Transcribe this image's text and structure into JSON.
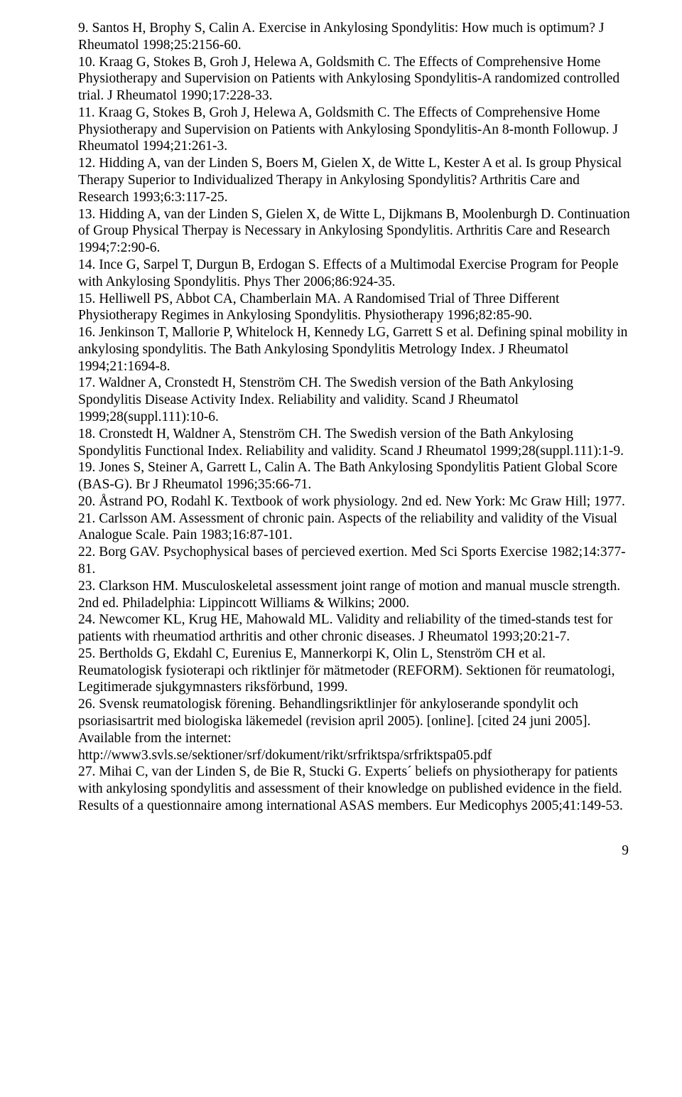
{
  "references": [
    "9. Santos H, Brophy S, Calin A. Exercise in Ankylosing Spondylitis: How much is optimum? J Rheumatol 1998;25:2156-60.",
    "10. Kraag G, Stokes B, Groh J, Helewa A, Goldsmith C. The Effects of Comprehensive Home Physiotherapy and Supervision on Patients with Ankylosing Spondylitis-A randomized controlled trial. J Rheumatol 1990;17:228-33.",
    "11. Kraag G, Stokes B, Groh J, Helewa A, Goldsmith C. The Effects of Comprehensive Home Physiotherapy and Supervision on Patients with Ankylosing Spondylitis-An 8-month Followup. J Rheumatol 1994;21:261-3.",
    "12. Hidding A, van der Linden S, Boers M, Gielen X, de Witte L, Kester A et al. Is group Physical Therapy Superior to Individualized Therapy in Ankylosing Spondylitis? Arthritis Care and Research 1993;6:3:117-25.",
    "13. Hidding A, van der Linden S, Gielen X, de Witte L, Dijkmans B, Moolenburgh D. Continuation of Group Physical Therpay is Necessary in Ankylosing Spondylitis. Arthritis Care and Research 1994;7:2:90-6.",
    "14. Ince G, Sarpel T, Durgun B, Erdogan S. Effects of a Multimodal Exercise Program for People with Ankylosing Spondylitis. Phys Ther 2006;86:924-35.",
    "15. Helliwell PS, Abbot CA, Chamberlain MA. A Randomised Trial of Three Different Physiotherapy Regimes in Ankylosing Spondylitis. Physiotherapy 1996;82:85-90.",
    "16. Jenkinson T, Mallorie P, Whitelock H, Kennedy LG, Garrett S et al. Defining spinal mobility in ankylosing spondylitis. The Bath Ankylosing Spondylitis Metrology Index. J Rheumatol 1994;21:1694-8.",
    "17. Waldner A, Cronstedt H, Stenström CH. The Swedish version of the Bath Ankylosing Spondylitis Disease Activity Index. Reliability and validity. Scand J Rheumatol 1999;28(suppl.111):10-6.",
    "18. Cronstedt H, Waldner A, Stenström CH. The Swedish version of the Bath Ankylosing Spondylitis Functional Index. Reliability and validity. Scand J Rheumatol 1999;28(suppl.111):1-9.",
    "19. Jones S, Steiner A, Garrett L, Calin A. The Bath Ankylosing Spondylitis Patient Global Score (BAS-G). Br J Rheumatol 1996;35:66-71.",
    "20. Åstrand PO, Rodahl K. Textbook of work physiology. 2nd ed. New York: Mc Graw Hill; 1977.",
    "21. Carlsson AM. Assessment of chronic pain. Aspects of the reliability and validity of the Visual Analogue Scale. Pain 1983;16:87-101.",
    "22. Borg GAV. Psychophysical bases of percieved exertion. Med Sci Sports Exercise 1982;14:377-81.",
    "23. Clarkson HM. Musculoskeletal assessment joint range of motion and manual muscle strength. 2nd ed. Philadelphia: Lippincott Williams & Wilkins; 2000.",
    "24. Newcomer KL, Krug HE, Mahowald ML. Validity and reliability of the timed-stands test for patients with rheumatiod arthritis and other chronic diseases. J Rheumatol 1993;20:21-7.",
    "25. Bertholds G, Ekdahl C, Eurenius E, Mannerkorpi K, Olin L, Stenström CH et al. Reumatologisk fysioterapi och riktlinjer för mätmetoder (REFORM). Sektionen för reumatologi, Legitimerade sjukgymnasters riksförbund, 1999.",
    "26. Svensk reumatologisk förening. Behandlingsriktlinjer för ankyloserande spondylit och psoriasisartrit med biologiska läkemedel (revision april 2005). [online]. [cited 24 juni 2005]. Available from the internet: http://www3.svls.se/sektioner/srf/dokument/rikt/srfriktspa/srfriktspa05.pdf",
    "27. Mihai C, van der Linden S, de Bie R, Stucki G. Experts´ beliefs on physiotherapy for patients with ankylosing spondylitis and assessment of their knowledge on published evidence in the field. Results of a questionnaire among international ASAS members. Eur Medicophys 2005;41:149-53."
  ],
  "page_number": "9"
}
